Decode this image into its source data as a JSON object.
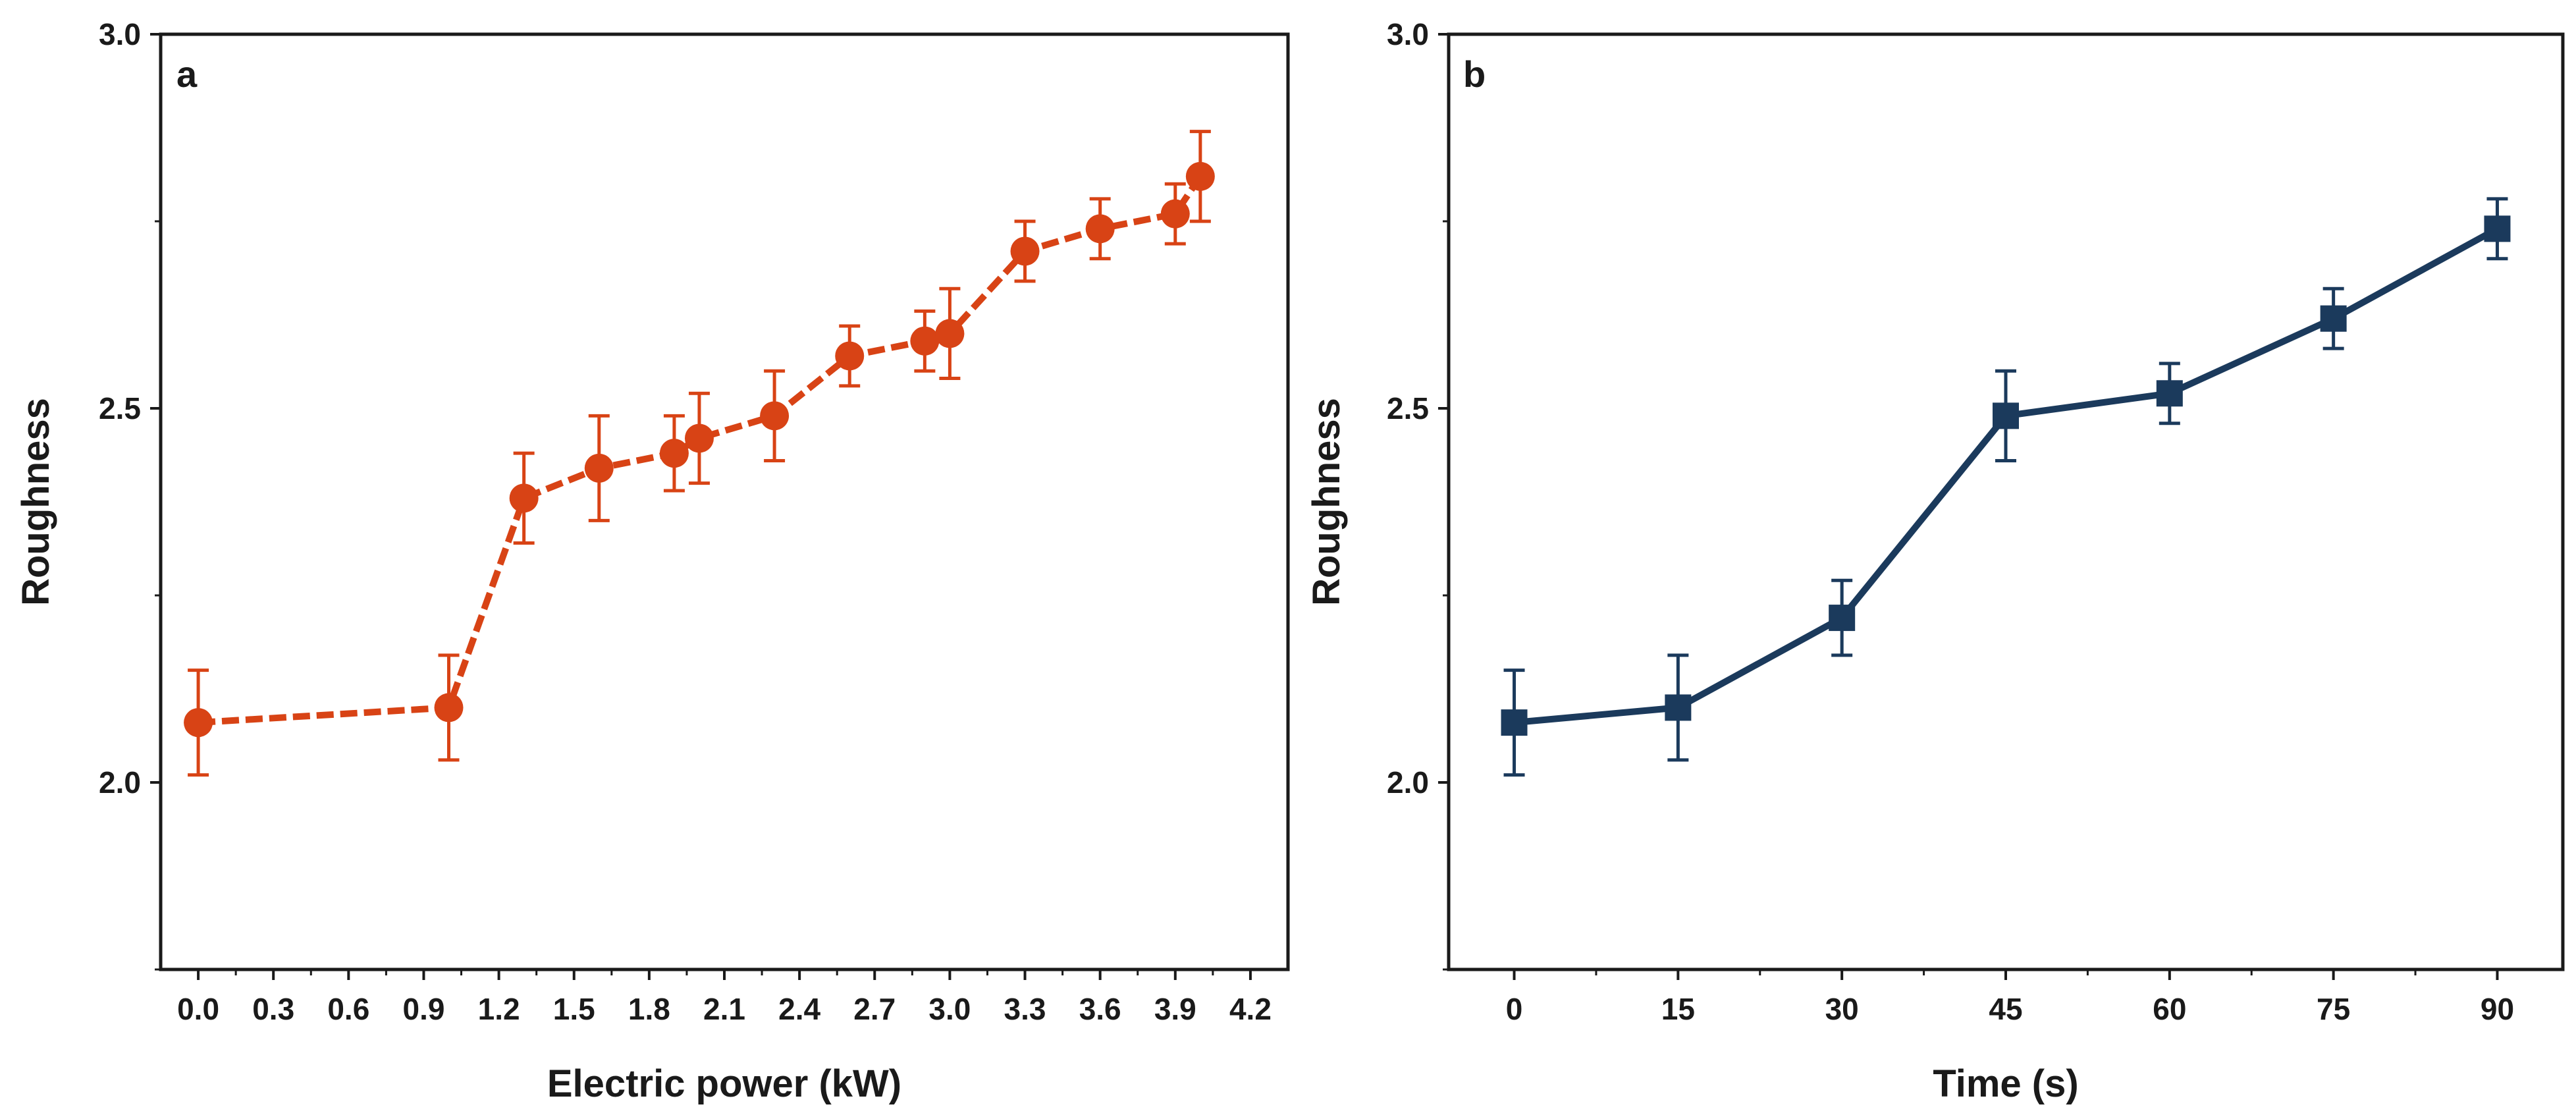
{
  "chart_data": [
    {
      "type": "line",
      "panel_label": "a",
      "title": "",
      "xlabel": "Electric power (kW)",
      "ylabel": "Roughness",
      "xlim": [
        -0.15,
        4.35
      ],
      "ylim": [
        1.75,
        3.0
      ],
      "xticks": [
        0.0,
        0.3,
        0.6,
        0.9,
        1.2,
        1.5,
        1.8,
        2.1,
        2.4,
        2.7,
        3.0,
        3.3,
        3.6,
        3.9,
        4.2
      ],
      "xtick_labels": [
        "0.0",
        "0.3",
        "0.6",
        "0.9",
        "1.2",
        "1.5",
        "1.8",
        "2.1",
        "2.4",
        "2.7",
        "3.0",
        "3.3",
        "3.6",
        "3.9",
        "4.2"
      ],
      "yticks": [
        2.0,
        2.5,
        3.0
      ],
      "ytick_labels": [
        "2.0",
        "2.5",
        "3.0"
      ],
      "color": "#d84315",
      "marker": "circle",
      "line_style": "dashed",
      "series": [
        {
          "name": "Roughness",
          "x": [
            0.0,
            1.0,
            1.3,
            1.6,
            1.9,
            2.0,
            2.3,
            2.6,
            2.9,
            3.0,
            3.3,
            3.6,
            3.9,
            4.0
          ],
          "y": [
            2.08,
            2.1,
            2.38,
            2.42,
            2.44,
            2.46,
            2.49,
            2.57,
            2.59,
            2.6,
            2.71,
            2.74,
            2.76,
            2.81
          ],
          "err": [
            0.07,
            0.07,
            0.06,
            0.07,
            0.05,
            0.06,
            0.06,
            0.04,
            0.04,
            0.06,
            0.04,
            0.04,
            0.04,
            0.06
          ]
        }
      ]
    },
    {
      "type": "line",
      "panel_label": "b",
      "title": "",
      "xlabel": "Time (s)",
      "ylabel": "Roughness",
      "xlim": [
        -6,
        96
      ],
      "ylim": [
        1.75,
        3.0
      ],
      "xticks": [
        0,
        15,
        30,
        45,
        60,
        75,
        90
      ],
      "xtick_labels": [
        "0",
        "15",
        "30",
        "45",
        "60",
        "75",
        "90"
      ],
      "yticks": [
        2.0,
        2.5,
        3.0
      ],
      "ytick_labels": [
        "2.0",
        "2.5",
        "3.0"
      ],
      "color": "#1b3a5c",
      "marker": "square",
      "line_style": "solid",
      "series": [
        {
          "name": "Roughness",
          "x": [
            0,
            15,
            30,
            45,
            60,
            75,
            90
          ],
          "y": [
            2.08,
            2.1,
            2.22,
            2.49,
            2.52,
            2.62,
            2.74
          ],
          "err": [
            0.07,
            0.07,
            0.05,
            0.06,
            0.04,
            0.04,
            0.04
          ]
        }
      ]
    }
  ]
}
